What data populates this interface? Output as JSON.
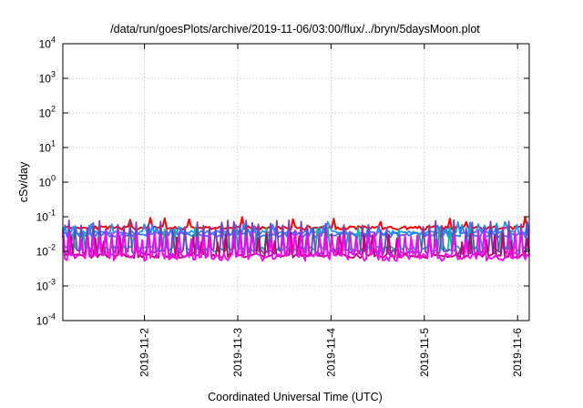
{
  "chart_data": {
    "type": "line",
    "title": "/data/run/goesPlots/archive/2019-11-06/03:00/flux/../bryn/5daysMoon.plot",
    "xlabel": "Coordinated Universal Time (UTC)",
    "ylabel": "cSv/day",
    "yscale": "log",
    "ylim": [
      0.0001,
      10000
    ],
    "y_ticks": [
      {
        "value": 0.0001,
        "base": "10",
        "exp": "-4"
      },
      {
        "value": 0.001,
        "base": "10",
        "exp": "-3"
      },
      {
        "value": 0.01,
        "base": "10",
        "exp": "-2"
      },
      {
        "value": 0.1,
        "base": "10",
        "exp": "-1"
      },
      {
        "value": 1,
        "base": "10",
        "exp": "0"
      },
      {
        "value": 10,
        "base": "10",
        "exp": "1"
      },
      {
        "value": 100,
        "base": "10",
        "exp": "2"
      },
      {
        "value": 1000,
        "base": "10",
        "exp": "3"
      },
      {
        "value": 10000,
        "base": "10",
        "exp": "4"
      }
    ],
    "xlim": [
      "2019-11-01 03:00",
      "2019-11-06 03:00"
    ],
    "x_ticks": [
      "2019-11-2",
      "2019-11-3",
      "2019-11-4",
      "2019-11-5",
      "2019-11-6"
    ],
    "grid": true,
    "series": [
      {
        "color": "#ff0000",
        "base": 0.048,
        "jitter": 0.12,
        "spike_every": 0,
        "spike_mult": 1.0,
        "seed": 11
      },
      {
        "color": "#1e90ff",
        "base": 0.035,
        "jitter": 0.12,
        "spike_every": 0,
        "spike_mult": 1.0,
        "seed": 23
      },
      {
        "color": "#2a7fff",
        "base": 0.03,
        "jitter": 0.15,
        "spike_every": 0,
        "spike_mult": 1.0,
        "seed": 37
      },
      {
        "color": "#00b894",
        "base": 0.012,
        "jitter": 0.18,
        "spike_every": 5,
        "spike_mult": 3.5,
        "seed": 41
      },
      {
        "color": "#7a3fbf",
        "base": 0.0095,
        "jitter": 0.2,
        "spike_every": 3,
        "spike_mult": 7.0,
        "seed": 53
      },
      {
        "color": "#c0006a",
        "base": 0.0075,
        "jitter": 0.15,
        "spike_every": 4,
        "spike_mult": 4.0,
        "seed": 67
      },
      {
        "color": "#ff00ff",
        "base": 0.007,
        "jitter": 0.25,
        "spike_every": 3,
        "spike_mult": 5.0,
        "seed": 79
      }
    ]
  }
}
